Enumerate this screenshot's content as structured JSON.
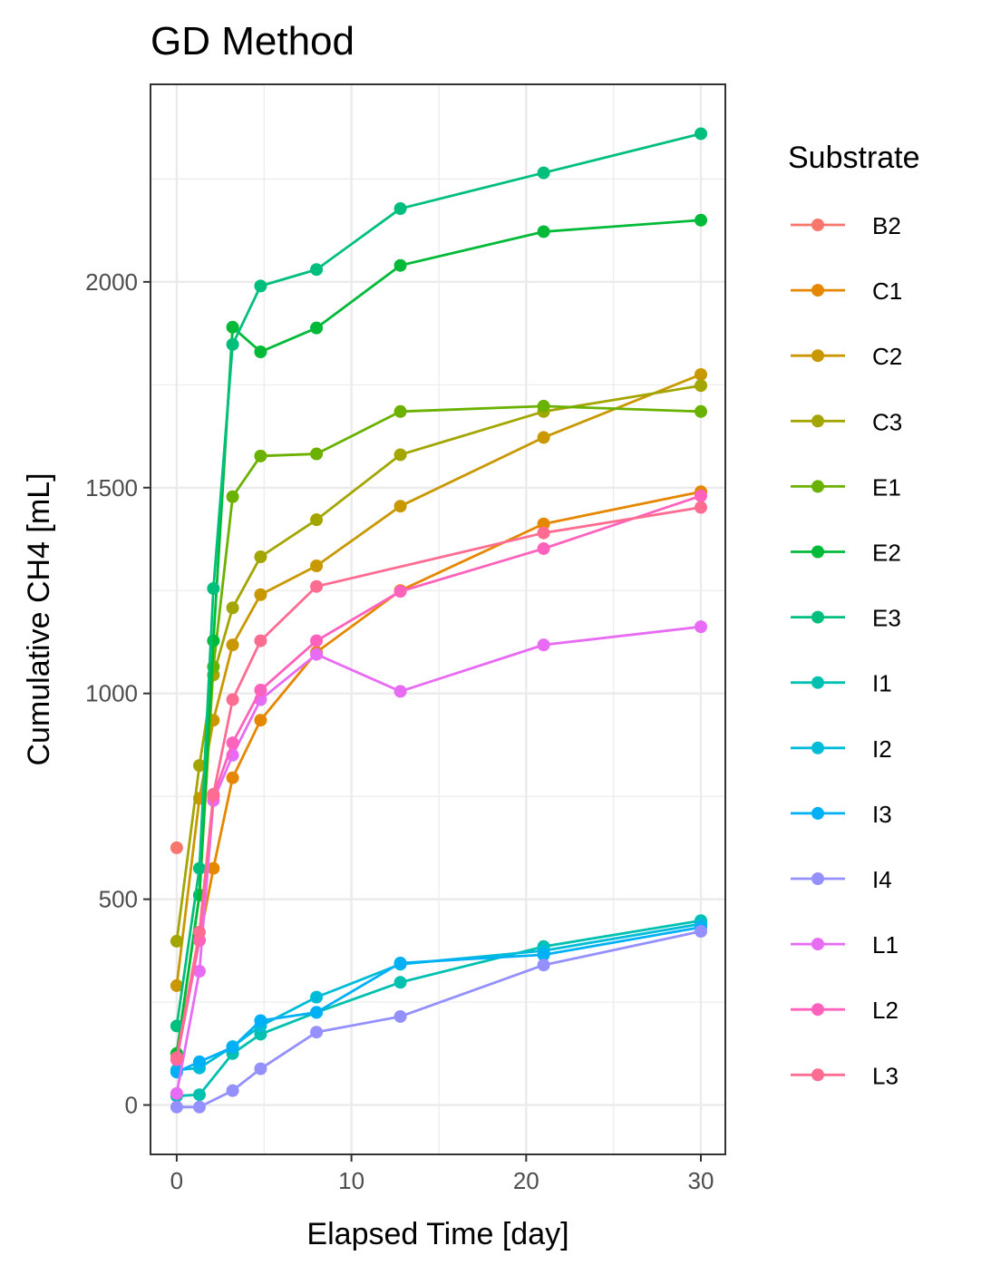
{
  "chart_data": {
    "type": "line",
    "title": "GD Method",
    "xlabel": "Elapsed Time [day]",
    "ylabel": "Cumulative CH4 [mL]",
    "xlim": [
      -1.5,
      31.4
    ],
    "ylim": [
      -120,
      2480
    ],
    "x_ticks": [
      0,
      10,
      20,
      30
    ],
    "y_ticks": [
      0,
      500,
      1000,
      1500,
      2000
    ],
    "x_tick_labels": [
      "0",
      "10",
      "20",
      "30"
    ],
    "y_tick_labels": [
      "0",
      "500",
      "1000",
      "1500",
      "2000"
    ],
    "grid": true,
    "legend": {
      "title": "Substrate",
      "position": "right"
    },
    "series": [
      {
        "name": "B2",
        "color": "#F8766D",
        "points": [
          [
            0,
            625
          ]
        ]
      },
      {
        "name": "C1",
        "color": "#E58700",
        "points": [
          [
            0,
            112
          ],
          [
            1.3,
            400
          ],
          [
            2.1,
            575
          ],
          [
            3.2,
            795
          ],
          [
            4.8,
            935
          ],
          [
            8.0,
            1100
          ],
          [
            12.8,
            1250
          ],
          [
            21.0,
            1412
          ],
          [
            30.0,
            1490
          ]
        ]
      },
      {
        "name": "C2",
        "color": "#C99800",
        "points": [
          [
            0,
            290
          ],
          [
            1.3,
            745
          ],
          [
            2.1,
            935
          ],
          [
            3.2,
            1118
          ],
          [
            4.8,
            1240
          ],
          [
            8.0,
            1310
          ],
          [
            12.8,
            1455
          ],
          [
            21.0,
            1622
          ],
          [
            30.0,
            1775
          ]
        ]
      },
      {
        "name": "C3",
        "color": "#A3A500",
        "points": [
          [
            0,
            398
          ],
          [
            1.3,
            825
          ],
          [
            2.1,
            1045
          ],
          [
            3.2,
            1208
          ],
          [
            4.8,
            1332
          ],
          [
            8.0,
            1422
          ],
          [
            12.8,
            1580
          ],
          [
            21.0,
            1685
          ],
          [
            30.0,
            1748
          ]
        ]
      },
      {
        "name": "E1",
        "color": "#6BB100",
        "points": [
          [
            0,
            125
          ],
          [
            1.3,
            510
          ],
          [
            2.1,
            1065
          ],
          [
            3.2,
            1478
          ],
          [
            4.8,
            1577
          ],
          [
            8.0,
            1582
          ],
          [
            12.8,
            1685
          ],
          [
            21.0,
            1698
          ],
          [
            30.0,
            1685
          ]
        ]
      },
      {
        "name": "E2",
        "color": "#00BA38",
        "points": [
          [
            0,
            125
          ],
          [
            1.3,
            510
          ],
          [
            2.1,
            1128
          ],
          [
            3.2,
            1890
          ],
          [
            4.8,
            1830
          ],
          [
            8.0,
            1888
          ],
          [
            12.8,
            2040
          ],
          [
            21.0,
            2122
          ],
          [
            30.0,
            2150
          ]
        ]
      },
      {
        "name": "E3",
        "color": "#00BF7D",
        "points": [
          [
            0,
            192
          ],
          [
            1.3,
            575
          ],
          [
            2.1,
            1255
          ],
          [
            3.2,
            1848
          ],
          [
            4.8,
            1990
          ],
          [
            8.0,
            2030
          ],
          [
            12.8,
            2178
          ],
          [
            21.0,
            2265
          ],
          [
            30.0,
            2360
          ]
        ]
      },
      {
        "name": "I1",
        "color": "#00C0AF",
        "points": [
          [
            0,
            22
          ],
          [
            1.3,
            25
          ],
          [
            3.2,
            125
          ],
          [
            4.8,
            172
          ],
          [
            8.0,
            225
          ],
          [
            12.8,
            298
          ],
          [
            21.0,
            385
          ],
          [
            30.0,
            448
          ]
        ]
      },
      {
        "name": "I2",
        "color": "#00BCD8",
        "points": [
          [
            0,
            85
          ],
          [
            1.3,
            90
          ],
          [
            3.2,
            142
          ],
          [
            4.8,
            192
          ],
          [
            8.0,
            262
          ],
          [
            12.8,
            342
          ],
          [
            21.0,
            375
          ],
          [
            30.0,
            440
          ]
        ]
      },
      {
        "name": "I3",
        "color": "#00B0F6",
        "points": [
          [
            0,
            80
          ],
          [
            1.3,
            105
          ],
          [
            3.2,
            140
          ],
          [
            4.8,
            205
          ],
          [
            8.0,
            225
          ],
          [
            12.8,
            345
          ],
          [
            21.0,
            365
          ],
          [
            30.0,
            432
          ]
        ]
      },
      {
        "name": "I4",
        "color": "#9590FF",
        "points": [
          [
            0,
            -5
          ],
          [
            1.3,
            -5
          ],
          [
            3.2,
            35
          ],
          [
            4.8,
            88
          ],
          [
            8.0,
            177
          ],
          [
            12.8,
            215
          ],
          [
            21.0,
            340
          ],
          [
            30.0,
            422
          ]
        ]
      },
      {
        "name": "L1",
        "color": "#E76BF3",
        "points": [
          [
            0,
            28
          ],
          [
            1.3,
            325
          ],
          [
            2.1,
            740
          ],
          [
            3.2,
            850
          ],
          [
            4.8,
            985
          ],
          [
            8.0,
            1095
          ],
          [
            12.8,
            1005
          ],
          [
            21.0,
            1118
          ],
          [
            30.0,
            1162
          ]
        ]
      },
      {
        "name": "L2",
        "color": "#FF62BC",
        "points": [
          [
            0,
            110
          ],
          [
            1.3,
            400
          ],
          [
            2.1,
            750
          ],
          [
            3.2,
            880
          ],
          [
            4.8,
            1008
          ],
          [
            8.0,
            1128
          ],
          [
            12.8,
            1248
          ],
          [
            21.0,
            1352
          ],
          [
            30.0,
            1480
          ]
        ]
      },
      {
        "name": "L3",
        "color": "#FF6C91",
        "points": [
          [
            0,
            115
          ],
          [
            1.3,
            420
          ],
          [
            2.1,
            755
          ],
          [
            3.2,
            985
          ],
          [
            4.8,
            1128
          ],
          [
            8.0,
            1260
          ],
          [
            21.0,
            1390
          ],
          [
            30.0,
            1452
          ]
        ]
      }
    ]
  }
}
